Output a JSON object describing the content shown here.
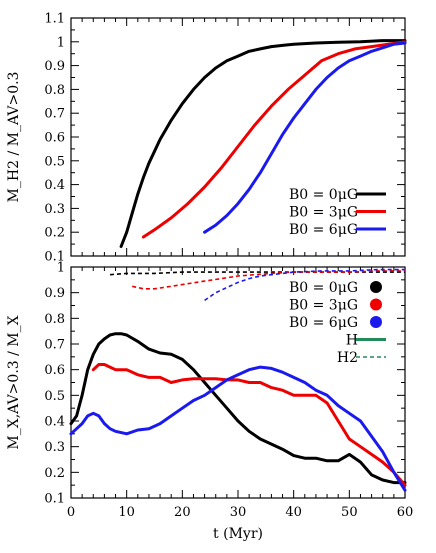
{
  "chart_data": [
    {
      "type": "line",
      "title": "",
      "xlabel": "",
      "ylabel": "M_H2 / M_AV>0.3",
      "xlim": [
        0,
        60
      ],
      "ylim": [
        0.1,
        1.1
      ],
      "xticks": [
        0,
        10,
        20,
        30,
        40,
        50,
        60
      ],
      "yticks": [
        0.1,
        0.2,
        0.3,
        0.4,
        0.5,
        0.6,
        0.7,
        0.8,
        0.9,
        1,
        1.1
      ],
      "xtick_labels": [
        "",
        "",
        "",
        "",
        "",
        "",
        ""
      ],
      "ytick_labels": [
        "0.1",
        "0.2",
        "0.3",
        "0.4",
        "0.5",
        "0.6",
        "0.7",
        "0.8",
        "0.9",
        "1",
        "1.1"
      ],
      "grid": false,
      "legend_position": "bottom-right",
      "series": [
        {
          "name": "B0 = 0μG",
          "color": "#000000",
          "style": "solid",
          "x": [
            9,
            10,
            11,
            12,
            13,
            14,
            15,
            16,
            18,
            20,
            22,
            24,
            26,
            28,
            30,
            32,
            34,
            36,
            38,
            40,
            44,
            48,
            52,
            56,
            60
          ],
          "y": [
            0.14,
            0.2,
            0.28,
            0.36,
            0.43,
            0.49,
            0.54,
            0.59,
            0.67,
            0.74,
            0.8,
            0.85,
            0.89,
            0.92,
            0.94,
            0.96,
            0.97,
            0.98,
            0.985,
            0.99,
            0.995,
            0.998,
            1.0,
            1.005,
            1.005
          ]
        },
        {
          "name": "B0 = 3μG",
          "color": "#ee0000",
          "style": "solid",
          "x": [
            13,
            15,
            18,
            21,
            24,
            27,
            30,
            33,
            36,
            39,
            42,
            45,
            48,
            51,
            54,
            57,
            60
          ],
          "y": [
            0.18,
            0.21,
            0.26,
            0.32,
            0.39,
            0.47,
            0.56,
            0.65,
            0.73,
            0.8,
            0.86,
            0.92,
            0.95,
            0.97,
            0.98,
            0.99,
            1.0
          ]
        },
        {
          "name": "B0 = 6μG",
          "color": "#1a1aee",
          "style": "solid",
          "x": [
            24,
            26,
            28,
            30,
            32,
            34,
            36,
            38,
            40,
            42,
            44,
            46,
            48,
            50,
            52,
            54,
            56,
            58,
            60
          ],
          "y": [
            0.2,
            0.23,
            0.27,
            0.32,
            0.38,
            0.45,
            0.53,
            0.61,
            0.68,
            0.74,
            0.8,
            0.85,
            0.89,
            0.92,
            0.94,
            0.96,
            0.975,
            0.99,
            0.995
          ]
        }
      ],
      "legend": [
        {
          "label": "B0 = 0μG",
          "color": "#000000"
        },
        {
          "label": "B0 = 3μG",
          "color": "#ee0000"
        },
        {
          "label": "B0 = 6μG",
          "color": "#1a1aee"
        }
      ]
    },
    {
      "type": "line",
      "title": "",
      "xlabel": "t (Myr)",
      "ylabel": "M_X,AV>0.3 / M_X",
      "xlim": [
        0,
        60
      ],
      "ylim": [
        0.1,
        1.0
      ],
      "xticks": [
        0,
        10,
        20,
        30,
        40,
        50,
        60
      ],
      "yticks": [
        0.1,
        0.2,
        0.3,
        0.4,
        0.5,
        0.6,
        0.7,
        0.8,
        0.9,
        1
      ],
      "xtick_labels": [
        "0",
        "10",
        "20",
        "30",
        "40",
        "50",
        "60"
      ],
      "ytick_labels": [
        "0.1",
        "0.2",
        "0.3",
        "0.4",
        "0.5",
        "0.6",
        "0.7",
        "0.8",
        "0.9",
        "1"
      ],
      "grid": false,
      "legend_position": "top-right",
      "series": [
        {
          "name": "B0 = 0μG",
          "tracer": "H",
          "color": "#000000",
          "style": "solid",
          "x": [
            0,
            1,
            2,
            3,
            4,
            5,
            6,
            7,
            8,
            9,
            10,
            12,
            14,
            16,
            18,
            20,
            22,
            24,
            26,
            28,
            30,
            32,
            34,
            36,
            38,
            40,
            42,
            44,
            46,
            48,
            50,
            52,
            54,
            56,
            58,
            60
          ],
          "y": [
            0.39,
            0.42,
            0.5,
            0.6,
            0.66,
            0.7,
            0.72,
            0.735,
            0.74,
            0.74,
            0.735,
            0.71,
            0.68,
            0.665,
            0.66,
            0.64,
            0.6,
            0.55,
            0.5,
            0.45,
            0.4,
            0.36,
            0.33,
            0.31,
            0.29,
            0.265,
            0.255,
            0.255,
            0.245,
            0.245,
            0.27,
            0.24,
            0.19,
            0.17,
            0.16,
            0.16
          ]
        },
        {
          "name": "B0 = 3μG",
          "tracer": "H",
          "color": "#ee0000",
          "style": "solid",
          "x": [
            4,
            5,
            6,
            7,
            8,
            10,
            12,
            14,
            16,
            18,
            20,
            22,
            24,
            26,
            28,
            30,
            32,
            34,
            36,
            38,
            40,
            42,
            44,
            46,
            48,
            50,
            52,
            54,
            56,
            58,
            60
          ],
          "y": [
            0.6,
            0.62,
            0.62,
            0.61,
            0.6,
            0.6,
            0.58,
            0.57,
            0.57,
            0.55,
            0.56,
            0.565,
            0.565,
            0.565,
            0.56,
            0.56,
            0.55,
            0.55,
            0.53,
            0.52,
            0.5,
            0.5,
            0.5,
            0.47,
            0.4,
            0.33,
            0.3,
            0.27,
            0.24,
            0.2,
            0.15
          ]
        },
        {
          "name": "B0 = 6μG",
          "tracer": "H",
          "color": "#1a1aee",
          "style": "solid",
          "x": [
            0,
            1,
            2,
            3,
            4,
            5,
            6,
            7,
            8,
            9,
            10,
            12,
            14,
            16,
            18,
            20,
            22,
            24,
            26,
            28,
            30,
            32,
            34,
            36,
            38,
            40,
            42,
            44,
            46,
            48,
            50,
            52,
            54,
            56,
            58,
            60
          ],
          "y": [
            0.35,
            0.37,
            0.39,
            0.42,
            0.43,
            0.42,
            0.39,
            0.37,
            0.36,
            0.355,
            0.35,
            0.365,
            0.37,
            0.39,
            0.42,
            0.45,
            0.48,
            0.5,
            0.53,
            0.56,
            0.58,
            0.6,
            0.61,
            0.605,
            0.59,
            0.57,
            0.55,
            0.52,
            0.5,
            0.46,
            0.43,
            0.4,
            0.34,
            0.28,
            0.2,
            0.13
          ]
        },
        {
          "name": "B0 = 0μG",
          "tracer": "H2",
          "color": "#000000",
          "style": "dashed",
          "x": [
            7,
            10,
            15,
            20,
            25,
            30,
            35,
            40,
            45,
            50,
            55,
            60
          ],
          "y": [
            0.97,
            0.975,
            0.975,
            0.98,
            0.98,
            0.98,
            0.98,
            0.98,
            0.98,
            0.98,
            0.98,
            0.98
          ]
        },
        {
          "name": "B0 = 3μG",
          "tracer": "H2",
          "color": "#ee0000",
          "style": "dashed",
          "x": [
            11,
            13,
            15,
            18,
            21,
            24,
            27,
            30,
            33,
            36,
            40,
            45,
            50,
            55,
            60
          ],
          "y": [
            0.925,
            0.915,
            0.915,
            0.925,
            0.935,
            0.945,
            0.955,
            0.965,
            0.97,
            0.975,
            0.98,
            0.98,
            0.98,
            0.985,
            0.985
          ]
        },
        {
          "name": "B0 = 6μG",
          "tracer": "H2",
          "color": "#1a1aee",
          "style": "dashed",
          "x": [
            24,
            26,
            28,
            30,
            32,
            34,
            36,
            38,
            40,
            45,
            50,
            55,
            60
          ],
          "y": [
            0.87,
            0.9,
            0.92,
            0.94,
            0.955,
            0.965,
            0.97,
            0.975,
            0.98,
            0.985,
            0.985,
            0.99,
            0.99
          ]
        }
      ],
      "legend": [
        {
          "label": "B0 = 0μG",
          "color": "#000000",
          "marker": "circle"
        },
        {
          "label": "B0 = 3μG",
          "color": "#ee0000",
          "marker": "circle"
        },
        {
          "label": "B0 = 6μG",
          "color": "#1a1aee",
          "marker": "circle"
        },
        {
          "label": "H",
          "color": "#228b5a",
          "style": "solid"
        },
        {
          "label": "H2",
          "color": "#228b5a",
          "style": "dashed"
        }
      ]
    }
  ]
}
